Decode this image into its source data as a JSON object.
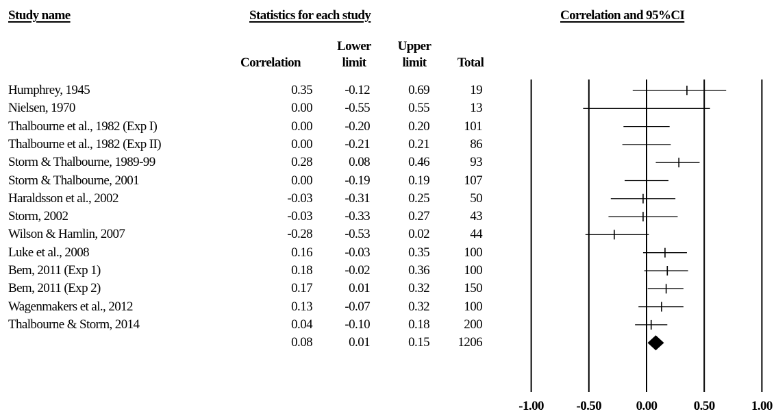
{
  "headers": {
    "study_name": "Study name",
    "stats": "Statistics for each study",
    "plot": "Correlation and 95%CI"
  },
  "columns": {
    "correlation": "Correlation",
    "lower": [
      "Lower",
      "limit"
    ],
    "upper": [
      "Upper",
      "limit"
    ],
    "total": "Total"
  },
  "chart_data": {
    "type": "forest",
    "xlabel": "",
    "xlim": [
      -1.0,
      1.0
    ],
    "xticks": [
      -1.0,
      -0.5,
      0.0,
      0.5,
      1.0
    ],
    "xtick_labels": [
      "-1.00",
      "-0.50",
      "0.00",
      "0.50",
      "1.00"
    ],
    "reference_lines": [
      -1.0,
      -0.5,
      0.0,
      0.5,
      1.0
    ],
    "studies": [
      {
        "name": "Humphrey, 1945",
        "r": "0.35",
        "lower": "-0.12",
        "upper": "0.69",
        "total": "19"
      },
      {
        "name": "Nielsen, 1970",
        "r": "0.00",
        "lower": "-0.55",
        "upper": "0.55",
        "total": "13"
      },
      {
        "name": "Thalbourne et al., 1982 (Exp I)",
        "r": "0.00",
        "lower": "-0.20",
        "upper": "0.20",
        "total": "101"
      },
      {
        "name": "Thalbourne et al., 1982 (Exp II)",
        "r": "0.00",
        "lower": "-0.21",
        "upper": "0.21",
        "total": "86"
      },
      {
        "name": "Storm & Thalbourne, 1989-99",
        "r": "0.28",
        "lower": "0.08",
        "upper": "0.46",
        "total": "93"
      },
      {
        "name": "Storm & Thalbourne, 2001",
        "r": "0.00",
        "lower": "-0.19",
        "upper": "0.19",
        "total": "107"
      },
      {
        "name": "Haraldsson et al., 2002",
        "r": "-0.03",
        "lower": "-0.31",
        "upper": "0.25",
        "total": "50"
      },
      {
        "name": "Storm, 2002",
        "r": "-0.03",
        "lower": "-0.33",
        "upper": "0.27",
        "total": "43"
      },
      {
        "name": "Wilson & Hamlin, 2007",
        "r": "-0.28",
        "lower": "-0.53",
        "upper": "0.02",
        "total": "44"
      },
      {
        "name": "Luke et al., 2008",
        "r": "0.16",
        "lower": "-0.03",
        "upper": "0.35",
        "total": "100"
      },
      {
        "name": "Bem, 2011 (Exp 1)",
        "r": "0.18",
        "lower": "-0.02",
        "upper": "0.36",
        "total": "100"
      },
      {
        "name": "Bem, 2011 (Exp 2)",
        "r": "0.17",
        "lower": "0.01",
        "upper": "0.32",
        "total": "150"
      },
      {
        "name": "Wagenmakers et al., 2012",
        "r": "0.13",
        "lower": "-0.07",
        "upper": "0.32",
        "total": "100"
      },
      {
        "name": "Thalbourne & Storm, 2014",
        "r": "0.04",
        "lower": "-0.10",
        "upper": "0.18",
        "total": "200"
      }
    ],
    "summary": {
      "name": "",
      "r": "0.08",
      "lower": "0.01",
      "upper": "0.15",
      "total": "1206"
    }
  }
}
